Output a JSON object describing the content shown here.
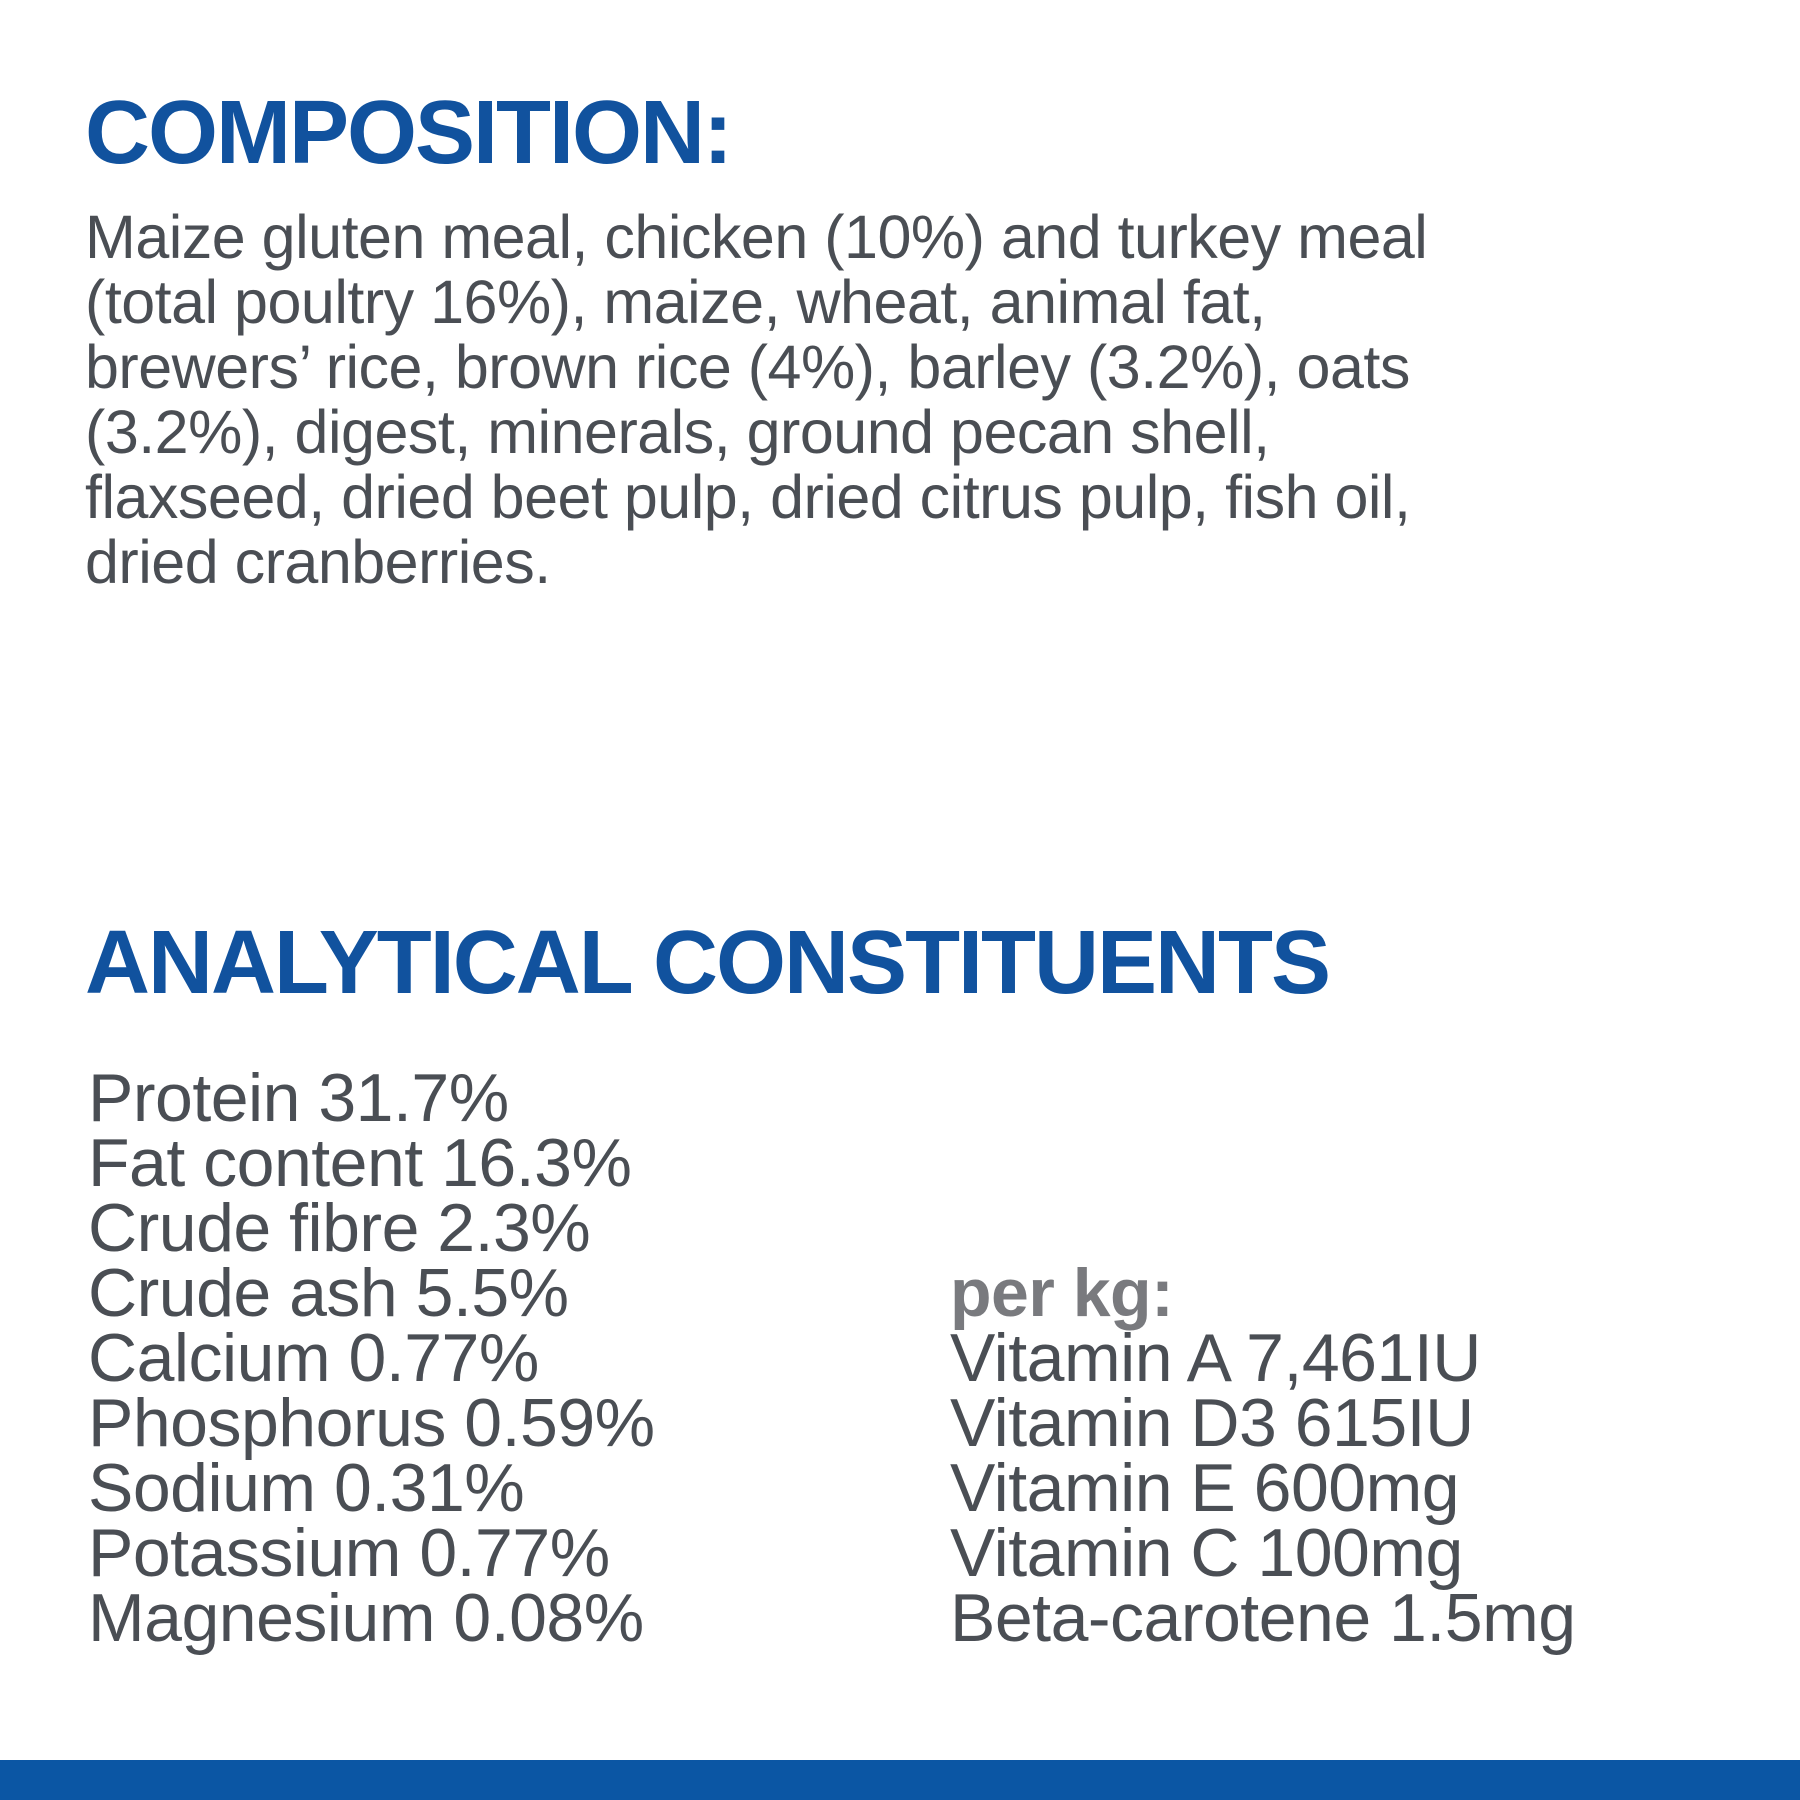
{
  "composition": {
    "heading": "COMPOSITION:",
    "body": "Maize gluten meal, chicken (10%) and turkey meal\n(total poultry 16%), maize, wheat, animal fat,\nbrewers’ rice, brown rice (4%), barley (3.2%), oats\n(3.2%), digest, minerals, ground pecan shell,\nflaxseed, dried beet pulp, dried citrus pulp, fish oil,\ndried cranberries."
  },
  "analytical": {
    "heading": "ANALYTICAL CONSTITUENTS",
    "nutrients": [
      "Protein 31.7%",
      "Fat content 16.3%",
      "Crude fibre 2.3%",
      "Crude ash 5.5%",
      "Calcium 0.77%",
      "Phosphorus 0.59%",
      "Sodium 0.31%",
      "Potassium 0.77%",
      "Magnesium 0.08%"
    ],
    "per_kg_label": "per kg:",
    "vitamins": [
      "Vitamin A 7,461IU",
      "Vitamin D3 615IU",
      "Vitamin E 600mg",
      "Vitamin C 100mg",
      "Beta-carotene 1.5mg"
    ]
  },
  "colors": {
    "brand_blue": "#11529E",
    "body_text": "#4A4E54",
    "per_kg_gray": "#797A7E",
    "footer_bar": "#0B56A4"
  }
}
